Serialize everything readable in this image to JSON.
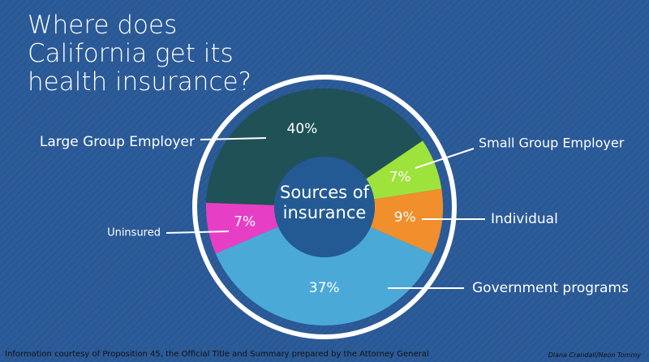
{
  "chart_data": {
    "type": "donut",
    "title": "Where does California get its health insurance?",
    "center_label": "Sources of insurance",
    "categories": [
      "Large Group Employer",
      "Small Group Employer",
      "Individual",
      "Government programs",
      "Uninsured"
    ],
    "values": [
      40,
      7,
      9,
      37,
      7
    ],
    "value_labels": [
      "40%",
      "7%",
      "9%",
      "37%",
      "7%"
    ],
    "colors": [
      "#1f5157",
      "#9ee23c",
      "#f08f2c",
      "#4ba9d8",
      "#e63fc6"
    ],
    "source": "Information courtesy of Proposition 45, the Official Title and Summary prepared by the Attorney General",
    "credit": "Diana Crandall/Neon Tommy"
  }
}
